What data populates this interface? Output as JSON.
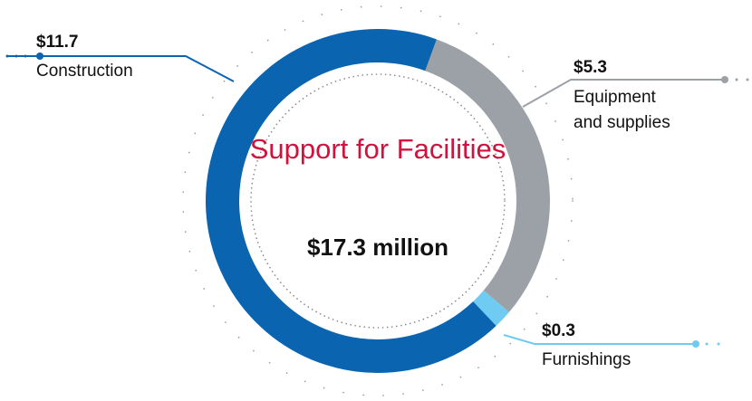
{
  "chart_data": {
    "type": "donut",
    "title": "Support for Facilities",
    "subtitle": "$17.3 million",
    "categories": [
      "Construction",
      "Equipment and supplies",
      "Furnishings"
    ],
    "values": [
      11.7,
      5.3,
      0.3
    ],
    "value_labels": [
      "$11.7",
      "$5.3",
      "$0.3"
    ],
    "colors": [
      "#0b64b0",
      "#9ba1a7",
      "#6fcbf1"
    ]
  }
}
